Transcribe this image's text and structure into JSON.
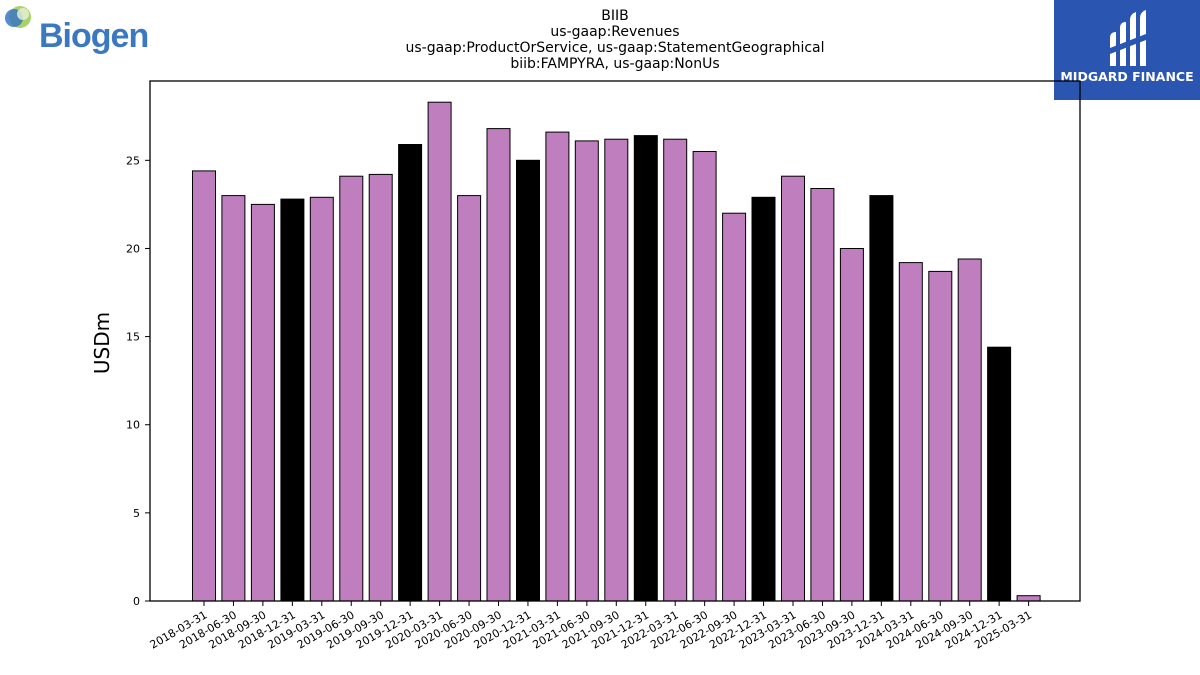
{
  "header": {
    "title_lines": [
      "BIIB",
      "us-gaap:Revenues",
      "us-gaap:ProductOrService, us-gaap:StatementGeographical",
      "biib:FAMPYRA, us-gaap:NonUs"
    ]
  },
  "logos": {
    "left_text": "Biogen",
    "right_text": "MIDGARD FINANCE"
  },
  "colors": {
    "quarter_bar": "#bf7fbf",
    "year_end_bar": "#000000",
    "brand_blue": "#2a55b0"
  },
  "chart_data": {
    "type": "bar",
    "title": "BIIB",
    "ylabel": "USDm",
    "xlabel": "",
    "ylim": [
      0,
      29.5
    ],
    "yticks": [
      0,
      5,
      10,
      15,
      20,
      25
    ],
    "grid": false,
    "categories": [
      "2018-03-31",
      "2018-06-30",
      "2018-09-30",
      "2018-12-31",
      "2019-03-31",
      "2019-06-30",
      "2019-09-30",
      "2019-12-31",
      "2020-03-31",
      "2020-06-30",
      "2020-09-30",
      "2020-12-31",
      "2021-03-31",
      "2021-06-30",
      "2021-09-30",
      "2021-12-31",
      "2022-03-31",
      "2022-06-30",
      "2022-09-30",
      "2022-12-31",
      "2023-03-31",
      "2023-06-30",
      "2023-09-30",
      "2023-12-31",
      "2024-03-31",
      "2024-06-30",
      "2024-09-30",
      "2024-12-31",
      "2025-03-31"
    ],
    "values": [
      24.4,
      23.0,
      22.5,
      22.8,
      22.9,
      24.1,
      24.2,
      25.9,
      28.3,
      23.0,
      26.8,
      25.0,
      26.6,
      26.1,
      26.2,
      26.4,
      26.2,
      25.5,
      22.0,
      22.9,
      24.1,
      23.4,
      20.0,
      23.0,
      19.2,
      18.7,
      19.4,
      14.4,
      0.3
    ],
    "year_end_flags": [
      false,
      false,
      false,
      true,
      false,
      false,
      false,
      true,
      false,
      false,
      false,
      true,
      false,
      false,
      false,
      true,
      false,
      false,
      false,
      true,
      false,
      false,
      false,
      true,
      false,
      false,
      false,
      true,
      false
    ]
  }
}
